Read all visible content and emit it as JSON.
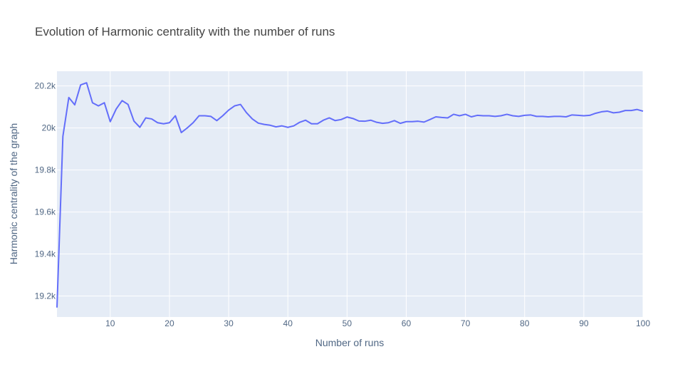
{
  "chart_data": {
    "type": "line",
    "title": "Evolution of Harmonic centrality with the number of runs",
    "xlabel": "Number of runs",
    "ylabel": "Harmonic centrality of the graph",
    "xlim": [
      1,
      100
    ],
    "ylim": [
      19100,
      20270
    ],
    "x_ticks": [
      10,
      20,
      30,
      40,
      50,
      60,
      70,
      80,
      90,
      100
    ],
    "x_tick_labels": [
      "10",
      "20",
      "30",
      "40",
      "50",
      "60",
      "70",
      "80",
      "90",
      "100"
    ],
    "y_ticks": [
      19200,
      19400,
      19600,
      19800,
      20000,
      20200
    ],
    "y_tick_labels": [
      "19.2k",
      "19.4k",
      "19.6k",
      "19.8k",
      "20k",
      "20.2k"
    ],
    "grid": true,
    "colors": {
      "line": "#636efa",
      "plot_bg": "#e5ecf6",
      "grid": "#ffffff"
    },
    "series": [
      {
        "name": "Harmonic centrality",
        "x": [
          1,
          2,
          3,
          4,
          5,
          6,
          7,
          8,
          9,
          10,
          11,
          12,
          13,
          14,
          15,
          16,
          17,
          18,
          19,
          20,
          21,
          22,
          23,
          24,
          25,
          26,
          27,
          28,
          29,
          30,
          31,
          32,
          33,
          34,
          35,
          36,
          37,
          38,
          39,
          40,
          41,
          42,
          43,
          44,
          45,
          46,
          47,
          48,
          49,
          50,
          51,
          52,
          53,
          54,
          55,
          56,
          57,
          58,
          59,
          60,
          61,
          62,
          63,
          64,
          65,
          66,
          67,
          68,
          69,
          70,
          71,
          72,
          73,
          74,
          75,
          76,
          77,
          78,
          79,
          80,
          81,
          82,
          83,
          84,
          85,
          86,
          87,
          88,
          89,
          90,
          91,
          92,
          93,
          94,
          95,
          96,
          97,
          98,
          99,
          100
        ],
        "y": [
          19145,
          19960,
          20145,
          20110,
          20205,
          20215,
          20120,
          20105,
          20120,
          20030,
          20090,
          20130,
          20112,
          20033,
          20003,
          20048,
          20043,
          20025,
          20020,
          20025,
          20058,
          19978,
          20000,
          20025,
          20058,
          20058,
          20055,
          20035,
          20058,
          20085,
          20105,
          20112,
          20073,
          20043,
          20023,
          20017,
          20013,
          20005,
          20010,
          20003,
          20010,
          20027,
          20037,
          20020,
          20020,
          20037,
          20048,
          20035,
          20040,
          20052,
          20045,
          20033,
          20032,
          20037,
          20027,
          20022,
          20025,
          20035,
          20022,
          20030,
          20030,
          20032,
          20028,
          20040,
          20053,
          20050,
          20048,
          20065,
          20058,
          20065,
          20053,
          20060,
          20058,
          20058,
          20055,
          20058,
          20065,
          20058,
          20055,
          20060,
          20062,
          20055,
          20055,
          20053,
          20055,
          20055,
          20053,
          20062,
          20060,
          20058,
          20060,
          20070,
          20077,
          20080,
          20072,
          20075,
          20083,
          20083,
          20088,
          20080
        ]
      }
    ]
  }
}
